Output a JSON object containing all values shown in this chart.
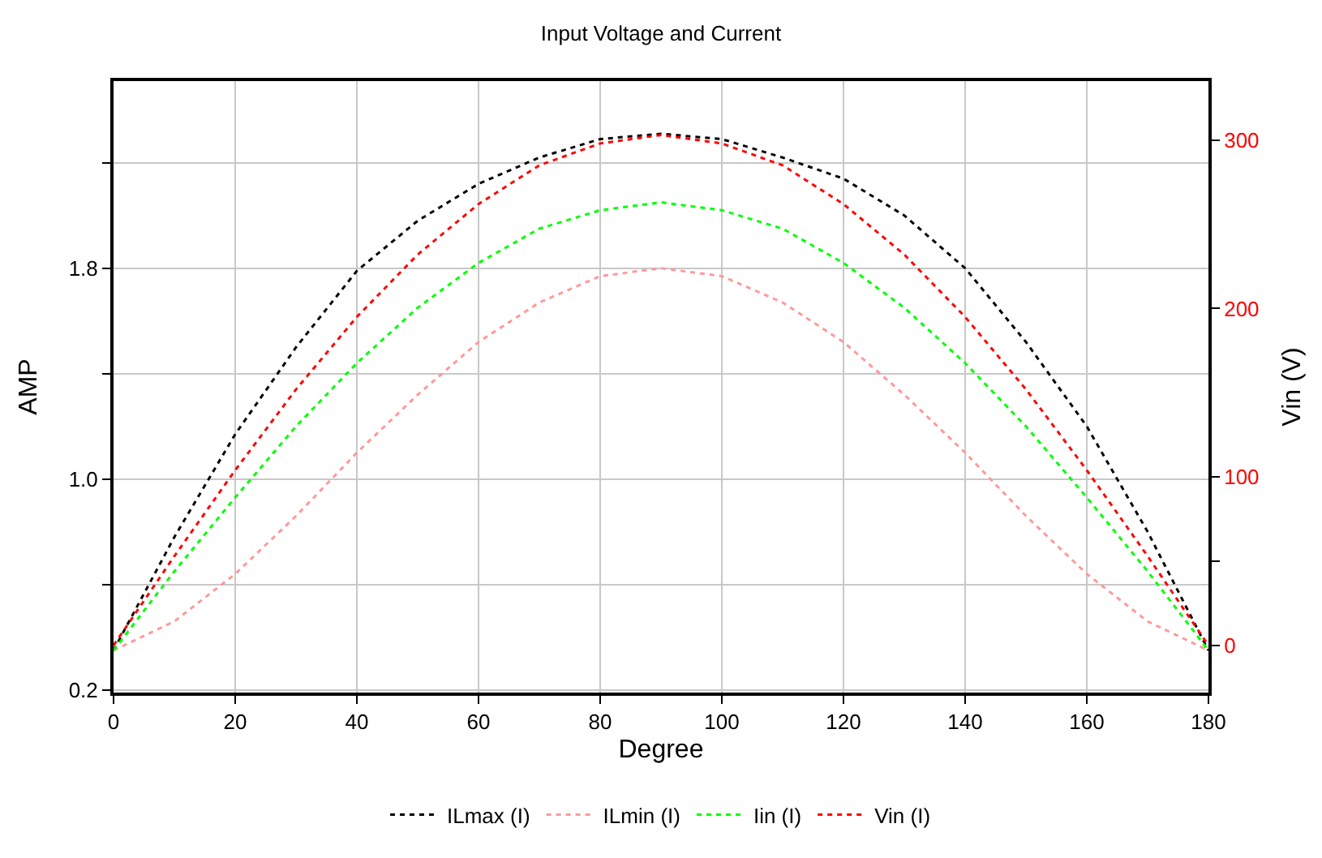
{
  "chart_data": {
    "type": "line",
    "title": "Input Voltage and Current",
    "xlabel": "Degree",
    "ylabel": "AMP",
    "y2label": "Vin (V)",
    "x": [
      0,
      10,
      20,
      30,
      40,
      50,
      60,
      70,
      80,
      90,
      100,
      110,
      120,
      130,
      140,
      150,
      160,
      170,
      180
    ],
    "series": [
      {
        "name": "ILmax (I)",
        "color": "#000000",
        "values": [
          0.35,
          0.78,
          1.17,
          1.5,
          1.79,
          1.98,
          2.12,
          2.22,
          2.29,
          2.31,
          2.29,
          2.22,
          2.14,
          2.0,
          1.8,
          1.52,
          1.2,
          0.8,
          0.35
        ]
      },
      {
        "name": "ILmin (I)",
        "color": "#ff9999",
        "values": [
          0.35,
          0.46,
          0.64,
          0.86,
          1.1,
          1.32,
          1.52,
          1.67,
          1.77,
          1.8,
          1.77,
          1.67,
          1.52,
          1.32,
          1.1,
          0.86,
          0.64,
          0.46,
          0.35
        ]
      },
      {
        "name": "Iin (I)",
        "color": "#00ff00",
        "values": [
          0.35,
          0.65,
          0.93,
          1.2,
          1.44,
          1.65,
          1.82,
          1.95,
          2.02,
          2.05,
          2.02,
          1.95,
          1.82,
          1.65,
          1.44,
          1.2,
          0.93,
          0.65,
          0.35
        ]
      },
      {
        "name": "Vin (I)",
        "color": "#ff0000",
        "axis": "y2",
        "values": [
          0,
          53,
          104,
          152,
          195,
          232,
          262,
          285,
          298,
          303,
          298,
          285,
          262,
          232,
          195,
          152,
          104,
          53,
          0
        ]
      }
    ],
    "xlim": [
      0,
      180
    ],
    "xticks": [
      0,
      20,
      40,
      60,
      80,
      100,
      120,
      140,
      160,
      180
    ],
    "ylim": [
      0.19,
      2.51
    ],
    "yticks": [
      0.2,
      {
        "value": 0.6,
        "label": null
      },
      {
        "value": 1.0,
        "label": "1.0"
      },
      {
        "value": 1.4,
        "label": null
      },
      1.8,
      {
        "value": 2.2,
        "label": null
      }
    ],
    "y2lim": [
      -28,
      335
    ],
    "y2ticks": [
      0,
      {
        "value": 50,
        "label": null
      },
      100,
      200,
      300
    ],
    "grid": true,
    "legend": "bottom",
    "line_style": "dotted"
  }
}
